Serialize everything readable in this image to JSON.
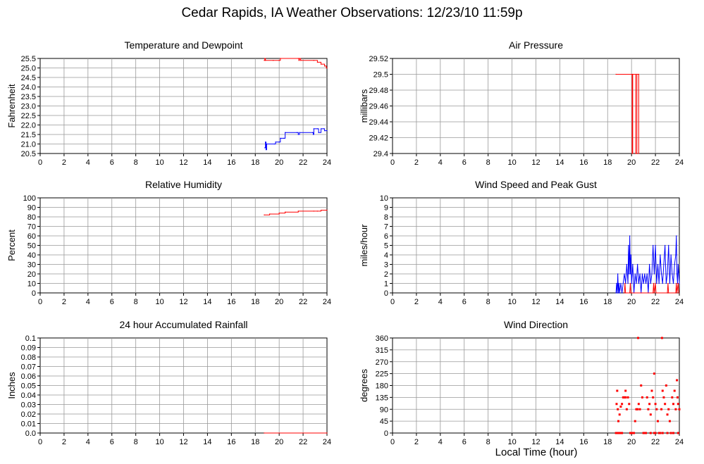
{
  "page": {
    "title": "Cedar Rapids, IA Weather Observations: 12/23/10 11:59p",
    "xlabel": "Local Time (hour)"
  },
  "colors": {
    "red": "#ff0000",
    "blue": "#0000ff",
    "grid": "#999999",
    "axis": "#000000"
  },
  "chart_data": [
    {
      "type": "line",
      "title": "Temperature and Dewpoint",
      "ylabel": "Fahrenheit",
      "xlim": [
        0,
        24
      ],
      "ylim": [
        20.5,
        25.5
      ],
      "xticks": [
        "0",
        "2",
        "4",
        "6",
        "8",
        "10",
        "12",
        "14",
        "16",
        "18",
        "20",
        "22",
        "24"
      ],
      "yticks": [
        "20.5",
        "21.0",
        "21.5",
        "22.0",
        "22.5",
        "23.0",
        "23.5",
        "24.0",
        "24.5",
        "25.0",
        "25.5"
      ],
      "grid": true,
      "series": [
        {
          "color": "#ff0000",
          "step": true,
          "points": [
            [
              18.75,
              25.4
            ],
            [
              18.8,
              25.5
            ],
            [
              18.85,
              25.4
            ],
            [
              19.5,
              25.4
            ],
            [
              20.0,
              25.4
            ],
            [
              20.1,
              25.5
            ],
            [
              21.6,
              25.5
            ],
            [
              21.65,
              25.4
            ],
            [
              21.7,
              25.5
            ],
            [
              21.8,
              25.4
            ],
            [
              22.9,
              25.4
            ],
            [
              23.2,
              25.3
            ],
            [
              23.5,
              25.2
            ],
            [
              23.8,
              25.1
            ],
            [
              23.95,
              25.0
            ],
            [
              24.0,
              25.0
            ]
          ]
        },
        {
          "color": "#0000ff",
          "step": true,
          "points": [
            [
              18.8,
              20.8
            ],
            [
              18.85,
              21.1
            ],
            [
              18.9,
              20.7
            ],
            [
              18.95,
              21.0
            ],
            [
              19.6,
              21.0
            ],
            [
              19.7,
              21.1
            ],
            [
              20.0,
              21.1
            ],
            [
              20.1,
              21.3
            ],
            [
              20.4,
              21.3
            ],
            [
              20.5,
              21.6
            ],
            [
              21.5,
              21.6
            ],
            [
              21.6,
              21.5
            ],
            [
              21.7,
              21.6
            ],
            [
              22.8,
              21.6
            ],
            [
              22.85,
              21.5
            ],
            [
              22.9,
              21.8
            ],
            [
              23.2,
              21.8
            ],
            [
              23.3,
              21.6
            ],
            [
              23.5,
              21.8
            ],
            [
              23.7,
              21.8
            ],
            [
              23.8,
              21.7
            ],
            [
              24.0,
              21.7
            ]
          ]
        }
      ]
    },
    {
      "type": "line",
      "title": "Air Pressure",
      "ylabel": "millibars",
      "xlim": [
        0,
        24
      ],
      "ylim": [
        29.4,
        29.52
      ],
      "xticks": [
        "0",
        "2",
        "4",
        "6",
        "8",
        "10",
        "12",
        "14",
        "16",
        "18",
        "20",
        "22",
        "24"
      ],
      "yticks": [
        "29.4",
        "29.42",
        "29.44",
        "29.46",
        "29.48",
        "29.5",
        "29.52"
      ],
      "grid": true,
      "series": [
        {
          "color": "#ff0000",
          "step": true,
          "points": [
            [
              18.7,
              29.5
            ],
            [
              20.05,
              29.5
            ],
            [
              20.05,
              29.4
            ],
            [
              20.1,
              29.4
            ],
            [
              20.1,
              29.5
            ],
            [
              20.35,
              29.5
            ],
            [
              20.35,
              29.4
            ],
            [
              20.4,
              29.4
            ],
            [
              20.45,
              29.4
            ],
            [
              20.45,
              29.5
            ],
            [
              20.6,
              29.5
            ],
            [
              20.6,
              29.4
            ]
          ]
        }
      ]
    },
    {
      "type": "line",
      "title": "Relative Humidity",
      "ylabel": "Percent",
      "xlim": [
        0,
        24
      ],
      "ylim": [
        0,
        100
      ],
      "xticks": [
        "0",
        "2",
        "4",
        "6",
        "8",
        "10",
        "12",
        "14",
        "16",
        "18",
        "20",
        "22",
        "24"
      ],
      "yticks": [
        "0",
        "10",
        "20",
        "30",
        "40",
        "50",
        "60",
        "70",
        "80",
        "90",
        "100"
      ],
      "grid": true,
      "series": [
        {
          "color": "#ff0000",
          "step": true,
          "points": [
            [
              18.75,
              82
            ],
            [
              19.2,
              83
            ],
            [
              20.0,
              84
            ],
            [
              20.5,
              85
            ],
            [
              21.6,
              86
            ],
            [
              22.9,
              86
            ],
            [
              23.2,
              86
            ],
            [
              23.5,
              87
            ],
            [
              24.0,
              87
            ]
          ]
        }
      ]
    },
    {
      "type": "line",
      "title": "Wind Speed and Peak Gust",
      "ylabel": "miles/hour",
      "xlim": [
        0,
        24
      ],
      "ylim": [
        0,
        10
      ],
      "xticks": [
        "0",
        "2",
        "4",
        "6",
        "8",
        "10",
        "12",
        "14",
        "16",
        "18",
        "20",
        "22",
        "24"
      ],
      "yticks": [
        "0",
        "1",
        "2",
        "3",
        "4",
        "5",
        "6",
        "7",
        "8",
        "9",
        "10"
      ],
      "grid": true,
      "series": [
        {
          "color": "#0000ff",
          "step": false,
          "points": [
            [
              18.7,
              0
            ],
            [
              18.75,
              1
            ],
            [
              18.8,
              0
            ],
            [
              18.85,
              2
            ],
            [
              18.9,
              0
            ],
            [
              18.95,
              1
            ],
            [
              19.0,
              0
            ],
            [
              19.1,
              1
            ],
            [
              19.2,
              0
            ],
            [
              19.3,
              1
            ],
            [
              19.4,
              2
            ],
            [
              19.5,
              1
            ],
            [
              19.6,
              3
            ],
            [
              19.7,
              1
            ],
            [
              19.75,
              5
            ],
            [
              19.8,
              2
            ],
            [
              19.85,
              6
            ],
            [
              19.9,
              2
            ],
            [
              19.95,
              4
            ],
            [
              20.0,
              1
            ],
            [
              20.1,
              3
            ],
            [
              20.2,
              0
            ],
            [
              20.3,
              2
            ],
            [
              20.4,
              1
            ],
            [
              20.5,
              3
            ],
            [
              20.6,
              1
            ],
            [
              20.7,
              2
            ],
            [
              20.8,
              0
            ],
            [
              20.9,
              2
            ],
            [
              21.0,
              1
            ],
            [
              21.1,
              2
            ],
            [
              21.2,
              1
            ],
            [
              21.3,
              2
            ],
            [
              21.4,
              0
            ],
            [
              21.5,
              3
            ],
            [
              21.6,
              1
            ],
            [
              21.7,
              2
            ],
            [
              21.8,
              5
            ],
            [
              21.9,
              2
            ],
            [
              22.0,
              5
            ],
            [
              22.1,
              1
            ],
            [
              22.2,
              3
            ],
            [
              22.3,
              1
            ],
            [
              22.4,
              4
            ],
            [
              22.5,
              2
            ],
            [
              22.6,
              1
            ],
            [
              22.7,
              3
            ],
            [
              22.8,
              5
            ],
            [
              22.9,
              1
            ],
            [
              23.0,
              2
            ],
            [
              23.1,
              5
            ],
            [
              23.2,
              1
            ],
            [
              23.3,
              4
            ],
            [
              23.4,
              2
            ],
            [
              23.5,
              1
            ],
            [
              23.6,
              3
            ],
            [
              23.7,
              4
            ],
            [
              23.75,
              6
            ],
            [
              23.8,
              2
            ],
            [
              23.85,
              1
            ],
            [
              23.9,
              3
            ],
            [
              24.0,
              1
            ]
          ]
        },
        {
          "color": "#ff0000",
          "step": false,
          "points": [
            [
              19.4,
              0
            ],
            [
              19.45,
              1
            ],
            [
              19.5,
              0
            ],
            [
              19.85,
              0
            ],
            [
              19.9,
              1
            ],
            [
              19.95,
              0
            ],
            [
              21.8,
              0
            ],
            [
              21.85,
              1
            ],
            [
              21.9,
              0
            ],
            [
              22.0,
              1
            ],
            [
              22.05,
              0
            ],
            [
              23.0,
              0
            ],
            [
              23.05,
              1
            ],
            [
              23.1,
              0
            ],
            [
              23.7,
              0
            ],
            [
              23.75,
              1
            ],
            [
              23.8,
              0
            ],
            [
              23.9,
              1
            ],
            [
              23.95,
              0
            ]
          ]
        }
      ]
    },
    {
      "type": "line",
      "title": "24 hour Accumulated Rainfall",
      "ylabel": "Inches",
      "xlim": [
        0,
        24
      ],
      "ylim": [
        0,
        0.1
      ],
      "xticks": [
        "0",
        "2",
        "4",
        "6",
        "8",
        "10",
        "12",
        "14",
        "16",
        "18",
        "20",
        "22",
        "24"
      ],
      "yticks": [
        "0.0",
        "0.01",
        "0.02",
        "0.03",
        "0.04",
        "0.05",
        "0.06",
        "0.07",
        "0.08",
        "0.09",
        "0.1"
      ],
      "grid": true,
      "series": [
        {
          "color": "#ff0000",
          "step": true,
          "points": [
            [
              18.75,
              0
            ],
            [
              24.0,
              0
            ]
          ]
        }
      ]
    },
    {
      "type": "scatter",
      "title": "Wind Direction",
      "ylabel": "degrees",
      "xlim": [
        0,
        24
      ],
      "ylim": [
        0,
        360
      ],
      "xticks": [
        "0",
        "2",
        "4",
        "6",
        "8",
        "10",
        "12",
        "14",
        "16",
        "18",
        "20",
        "22",
        "24"
      ],
      "yticks": [
        "0",
        "45",
        "90",
        "135",
        "180",
        "225",
        "270",
        "315",
        "360"
      ],
      "grid": true,
      "series": [
        {
          "color": "#ff0000",
          "points": [
            [
              18.7,
              0
            ],
            [
              18.8,
              0
            ],
            [
              18.9,
              0
            ],
            [
              19.0,
              0
            ],
            [
              19.1,
              0
            ],
            [
              19.2,
              0
            ],
            [
              18.75,
              110
            ],
            [
              18.8,
              160
            ],
            [
              18.85,
              90
            ],
            [
              18.9,
              45
            ],
            [
              19.0,
              70
            ],
            [
              19.1,
              100
            ],
            [
              19.2,
              110
            ],
            [
              19.3,
              135
            ],
            [
              19.4,
              135
            ],
            [
              19.5,
              135
            ],
            [
              19.5,
              160
            ],
            [
              19.6,
              90
            ],
            [
              19.7,
              135
            ],
            [
              19.8,
              110
            ],
            [
              19.9,
              0
            ],
            [
              20.0,
              0
            ],
            [
              20.1,
              0
            ],
            [
              20.2,
              0
            ],
            [
              20.3,
              45
            ],
            [
              20.4,
              90
            ],
            [
              20.5,
              90
            ],
            [
              20.55,
              360
            ],
            [
              20.6,
              110
            ],
            [
              20.7,
              90
            ],
            [
              20.8,
              180
            ],
            [
              20.9,
              135
            ],
            [
              21.0,
              0
            ],
            [
              21.1,
              0
            ],
            [
              21.2,
              0
            ],
            [
              21.3,
              135
            ],
            [
              21.4,
              90
            ],
            [
              21.5,
              110
            ],
            [
              21.6,
              70
            ],
            [
              21.7,
              160
            ],
            [
              21.8,
              135
            ],
            [
              21.9,
              225
            ],
            [
              22.0,
              110
            ],
            [
              22.1,
              90
            ],
            [
              22.2,
              45
            ],
            [
              22.3,
              0
            ],
            [
              22.4,
              0
            ],
            [
              22.5,
              90
            ],
            [
              22.55,
              360
            ],
            [
              22.6,
              160
            ],
            [
              22.7,
              135
            ],
            [
              22.8,
              110
            ],
            [
              22.9,
              180
            ],
            [
              23.0,
              70
            ],
            [
              23.1,
              90
            ],
            [
              23.2,
              45
            ],
            [
              23.3,
              0
            ],
            [
              23.4,
              135
            ],
            [
              23.5,
              110
            ],
            [
              23.6,
              160
            ],
            [
              23.7,
              90
            ],
            [
              23.8,
              200
            ],
            [
              23.85,
              135
            ],
            [
              23.9,
              110
            ],
            [
              24.0,
              90
            ],
            [
              22.0,
              0
            ],
            [
              22.6,
              0
            ],
            [
              23.0,
              0
            ],
            [
              23.5,
              0
            ],
            [
              23.9,
              0
            ],
            [
              21.6,
              0
            ],
            [
              21.9,
              0
            ]
          ]
        }
      ]
    }
  ]
}
